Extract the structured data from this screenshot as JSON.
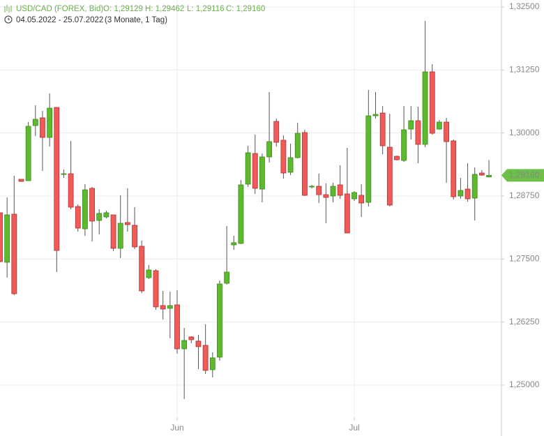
{
  "header": {
    "symbol": "USD/CAD (FOREX, Bid)",
    "ohlc": [
      "O: 1,29129",
      "H: 1,29462",
      "L: 1,29116",
      "C: 1,29160"
    ],
    "range": "04.05.2022 - 25.07.2022",
    "period": "(3 Monate, 1 Tag)"
  },
  "chart_data": {
    "type": "candlestick",
    "categories": [
      null,
      null,
      null,
      null,
      null,
      null,
      null,
      null,
      null,
      null,
      null,
      null,
      null,
      null,
      null,
      null,
      null,
      null,
      null,
      null,
      null,
      null,
      null,
      null,
      null,
      "Jun",
      null,
      null,
      null,
      null,
      null,
      null,
      null,
      null,
      null,
      null,
      null,
      null,
      null,
      null,
      null,
      null,
      null,
      null,
      null,
      null,
      null,
      null,
      null,
      null,
      "Jul",
      null,
      null,
      null,
      null,
      null,
      null,
      null,
      null,
      null,
      null,
      null,
      null,
      null,
      null,
      null,
      null,
      null,
      null,
      null
    ],
    "open": [
      1.28418,
      1.27435,
      1.2839,
      1.29082,
      1.29054,
      1.30147,
      1.303,
      1.29912,
      1.30507,
      1.29192,
      1.29192,
      1.28542,
      1.28099,
      1.28902,
      1.28265,
      1.28335,
      1.28376,
      1.27712,
      1.28224,
      1.28169,
      1.27753,
      1.27131,
      1.27269,
      1.26577,
      1.26522,
      1.26591,
      1.25719,
      1.25955,
      1.25872,
      1.25788,
      1.25304,
      1.25553,
      1.2702,
      1.27781,
      1.27809,
      1.28985,
      1.29594,
      1.28888,
      1.29525,
      1.3023,
      1.29857,
      1.2922,
      1.29511,
      1.30009,
      1.28943,
      1.28943,
      1.28777,
      1.2875,
      1.28971,
      1.28791,
      1.28694,
      1.28764,
      1.28625,
      1.30341,
      1.30396,
      1.29718,
      1.29538,
      1.29455,
      1.30078,
      1.30244,
      1.29774,
      1.31213,
      1.30078,
      1.30216,
      1.29843,
      1.2875,
      1.28888,
      1.28708,
      1.29206,
      1.29129
    ],
    "high": [
      1.28418,
      1.28722,
      1.29151,
      1.29082,
      1.30216,
      1.30549,
      1.30438,
      1.30784,
      1.30507,
      1.29276,
      1.29843,
      1.28584,
      1.28985,
      1.2893,
      1.28487,
      1.28459,
      1.28376,
      1.28764,
      1.28902,
      1.28528,
      1.27864,
      1.2738,
      1.27297,
      1.26868,
      1.26854,
      1.26882,
      1.26134,
      1.25968,
      1.25996,
      1.26204,
      1.2565,
      1.27075,
      1.28155,
      1.27961,
      1.29068,
      1.29746,
      1.29967,
      1.29594,
      1.30811,
      1.30286,
      1.29954,
      1.29788,
      1.30203,
      1.30064,
      1.28971,
      1.29192,
      1.28999,
      1.29013,
      1.29359,
      1.29704,
      1.28847,
      1.28985,
      1.30853,
      1.30811,
      1.30535,
      1.30383,
      1.29552,
      1.30535,
      1.30535,
      1.30521,
      1.32223,
      1.31365,
      1.30258,
      1.303,
      1.29871,
      1.29109,
      1.294,
      1.29317,
      1.29262,
      1.29462
    ],
    "low": [
      1.27435,
      1.27131,
      1.26785,
      1.2904,
      1.29054,
      1.2994,
      1.29248,
      1.29732,
      1.27241,
      1.29109,
      1.28487,
      1.28044,
      1.27961,
      1.2785,
      1.27989,
      1.28307,
      1.27657,
      1.27518,
      1.28044,
      1.27698,
      1.26826,
      1.27103,
      1.26494,
      1.263,
      1.25927,
      1.25622,
      1.24723,
      1.2583,
      1.25318,
      1.25221,
      1.25152,
      1.25484,
      1.26992,
      1.27684,
      1.27795,
      1.2893,
      1.28791,
      1.28625,
      1.29414,
      1.29732,
      1.29096,
      1.29165,
      1.29497,
      1.2875,
      1.28902,
      1.28611,
      1.2821,
      1.28625,
      1.28694,
      1.28016,
      1.28653,
      1.28335,
      1.28542,
      1.30286,
      1.2958,
      1.28542,
      1.29455,
      1.29428,
      1.29871,
      1.294,
      1.29718,
      1.29967,
      1.30064,
      1.29013,
      1.2868,
      1.28694,
      1.28639,
      1.28265,
      1.29151,
      1.29116
    ],
    "close": [
      1.27449,
      1.28376,
      1.26812,
      1.2904,
      1.30133,
      1.30272,
      1.29912,
      1.30493,
      1.2767,
      1.29192,
      1.28528,
      1.28113,
      1.28874,
      1.28252,
      1.28404,
      1.28418,
      1.27712,
      1.2821,
      1.28182,
      1.2774,
      1.26868,
      1.27283,
      1.2655,
      1.26508,
      1.26577,
      1.25719,
      1.25885,
      1.25899,
      1.25761,
      1.2529,
      1.25539,
      1.27006,
      1.27241,
      1.27823,
      1.28971,
      1.29608,
      1.28902,
      1.29525,
      1.29829,
      1.29815,
      1.29206,
      1.29511,
      1.29995,
      1.28764,
      1.28943,
      1.28777,
      1.28722,
      1.28943,
      1.28764,
      1.28016,
      1.28819,
      1.28611,
      1.30341,
      1.30369,
      1.29746,
      1.2857,
      1.29469,
      1.30064,
      1.30244,
      1.29774,
      1.31213,
      1.29995,
      1.30216,
      1.29829,
      1.28736,
      1.2886,
      1.28694,
      1.29179,
      1.29165,
      1.2916
    ],
    "up_color": "#5dba2f",
    "down_color": "#f25a5a",
    "last_price": {
      "value": 1.2916,
      "label": "1,29160"
    },
    "ylim": [
      1.24363,
      1.32638
    ],
    "yticks": [
      {
        "value": 1.25,
        "label": "1,25000"
      },
      {
        "value": 1.2625,
        "label": "1,26250"
      },
      {
        "value": 1.275,
        "label": "1,27500"
      },
      {
        "value": 1.2875,
        "label": "1,28750"
      },
      {
        "value": 1.3,
        "label": "1,30000"
      },
      {
        "value": 1.3125,
        "label": "1,31250"
      },
      {
        "value": 1.325,
        "label": "1,32500"
      }
    ],
    "grid": true
  }
}
